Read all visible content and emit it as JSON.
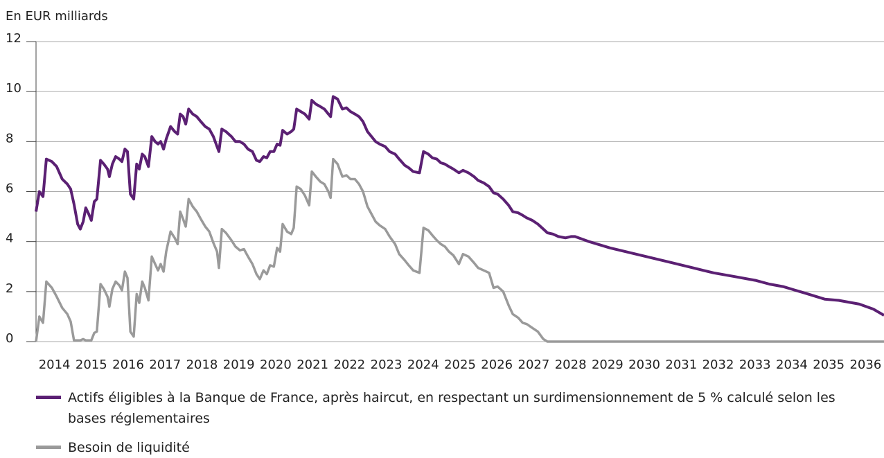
{
  "chart_data": {
    "type": "line",
    "y_label": "En EUR milliards",
    "x": [
      2014.0,
      2014.09,
      2014.19,
      2014.28,
      2014.43,
      2014.56,
      2014.71,
      2014.85,
      2014.94,
      2015.03,
      2015.13,
      2015.2,
      2015.28,
      2015.35,
      2015.43,
      2015.5,
      2015.58,
      2015.65,
      2015.75,
      2015.84,
      2015.94,
      2015.99,
      2016.07,
      2016.16,
      2016.26,
      2016.33,
      2016.41,
      2016.48,
      2016.56,
      2016.65,
      2016.73,
      2016.8,
      2016.88,
      2016.95,
      2017.05,
      2017.14,
      2017.23,
      2017.31,
      2017.38,
      2017.46,
      2017.53,
      2017.65,
      2017.76,
      2017.84,
      2017.91,
      2017.99,
      2018.06,
      2018.14,
      2018.25,
      2018.36,
      2018.47,
      2018.59,
      2018.7,
      2018.81,
      2018.91,
      2018.96,
      2019.04,
      2019.15,
      2019.3,
      2019.41,
      2019.53,
      2019.64,
      2019.75,
      2019.87,
      2019.98,
      2020.07,
      2020.17,
      2020.26,
      2020.35,
      2020.45,
      2020.54,
      2020.62,
      2020.69,
      2020.81,
      2020.92,
      2020.99,
      2021.07,
      2021.18,
      2021.29,
      2021.41,
      2021.48,
      2021.59,
      2021.71,
      2021.82,
      2021.93,
      2021.99,
      2022.06,
      2022.18,
      2022.31,
      2022.42,
      2022.53,
      2022.65,
      2022.76,
      2022.87,
      2022.99,
      2023.1,
      2023.21,
      2023.32,
      2023.47,
      2023.59,
      2023.74,
      2023.85,
      2024.0,
      2024.11,
      2024.23,
      2024.4,
      2024.51,
      2024.64,
      2024.75,
      2024.87,
      2024.98,
      2025.09,
      2025.2,
      2025.32,
      2025.47,
      2025.58,
      2025.73,
      2025.88,
      2025.99,
      2026.14,
      2026.29,
      2026.41,
      2026.52,
      2026.67,
      2026.82,
      2026.93,
      2027.08,
      2027.2,
      2027.31,
      2027.46,
      2027.61,
      2027.76,
      2027.87,
      2028.02,
      2028.17,
      2028.36,
      2028.51,
      2028.62,
      2029.0,
      2029.56,
      2030.13,
      2030.69,
      2031.26,
      2031.82,
      2032.38,
      2032.95,
      2033.51,
      2033.89,
      2034.26,
      2034.83,
      2035.39,
      2035.77,
      2036.33,
      2036.71,
      2037.0
    ],
    "series": [
      {
        "name": "Actifs éligibles à la Banque de France, après haircut, en respectant un surdimensionnement de 5 % calculé selon les bases réglementaires",
        "color": "#5b2073",
        "width": 4,
        "values": [
          5.2,
          6.0,
          5.8,
          7.3,
          7.2,
          7.0,
          6.5,
          6.3,
          6.1,
          5.5,
          4.7,
          4.5,
          4.8,
          5.35,
          5.1,
          4.85,
          5.6,
          5.7,
          7.25,
          7.1,
          6.9,
          6.6,
          7.1,
          7.4,
          7.3,
          7.2,
          7.7,
          7.6,
          5.9,
          5.7,
          7.1,
          6.9,
          7.5,
          7.4,
          7.0,
          8.2,
          8.0,
          7.9,
          8.0,
          7.7,
          8.1,
          8.6,
          8.4,
          8.3,
          9.1,
          9.0,
          8.7,
          9.3,
          9.1,
          9.0,
          8.8,
          8.6,
          8.5,
          8.2,
          7.8,
          7.6,
          8.5,
          8.4,
          8.2,
          8.0,
          8.0,
          7.9,
          7.7,
          7.6,
          7.25,
          7.2,
          7.4,
          7.35,
          7.6,
          7.6,
          7.9,
          7.85,
          8.45,
          8.3,
          8.4,
          8.5,
          9.3,
          9.2,
          9.1,
          8.9,
          9.65,
          9.5,
          9.4,
          9.3,
          9.1,
          9.0,
          9.8,
          9.7,
          9.3,
          9.35,
          9.2,
          9.1,
          9.0,
          8.8,
          8.4,
          8.2,
          8.0,
          7.9,
          7.8,
          7.6,
          7.5,
          7.3,
          7.05,
          6.95,
          6.8,
          6.75,
          7.6,
          7.5,
          7.35,
          7.3,
          7.15,
          7.1,
          7.0,
          6.9,
          6.75,
          6.85,
          6.75,
          6.6,
          6.45,
          6.35,
          6.2,
          5.95,
          5.9,
          5.7,
          5.45,
          5.2,
          5.15,
          5.05,
          4.95,
          4.85,
          4.7,
          4.5,
          4.35,
          4.3,
          4.2,
          4.15,
          4.2,
          4.2,
          4.0,
          3.75,
          3.55,
          3.35,
          3.15,
          2.95,
          2.75,
          2.6,
          2.45,
          2.3,
          2.2,
          1.95,
          1.7,
          1.65,
          1.5,
          1.3,
          1.05
        ]
      },
      {
        "name": "Besoin de liquidité",
        "color": "#9a9a9a",
        "width": 3.5,
        "values": [
          0,
          1.0,
          0.75,
          2.4,
          2.15,
          1.8,
          1.35,
          1.1,
          0.8,
          0.05,
          0.05,
          0.05,
          0.1,
          0.05,
          0.05,
          0.05,
          0.35,
          0.4,
          2.3,
          2.1,
          1.8,
          1.4,
          2.1,
          2.4,
          2.25,
          2.05,
          2.8,
          2.55,
          0.4,
          0.2,
          1.9,
          1.55,
          2.4,
          2.15,
          1.65,
          3.4,
          3.1,
          2.85,
          3.1,
          2.8,
          3.6,
          4.4,
          4.15,
          3.9,
          5.2,
          4.9,
          4.6,
          5.7,
          5.4,
          5.2,
          4.9,
          4.6,
          4.4,
          3.95,
          3.6,
          2.95,
          4.5,
          4.35,
          4.05,
          3.8,
          3.65,
          3.7,
          3.4,
          3.1,
          2.7,
          2.5,
          2.85,
          2.7,
          3.05,
          3.0,
          3.75,
          3.6,
          4.7,
          4.4,
          4.3,
          4.55,
          6.2,
          6.1,
          5.85,
          5.45,
          6.8,
          6.6,
          6.4,
          6.3,
          6.0,
          5.75,
          7.3,
          7.1,
          6.6,
          6.65,
          6.5,
          6.5,
          6.3,
          6.0,
          5.4,
          5.1,
          4.8,
          4.65,
          4.5,
          4.2,
          3.9,
          3.5,
          3.25,
          3.05,
          2.85,
          2.75,
          4.55,
          4.45,
          4.25,
          4.05,
          3.9,
          3.8,
          3.6,
          3.45,
          3.1,
          3.5,
          3.4,
          3.15,
          2.95,
          2.85,
          2.75,
          2.15,
          2.2,
          2.0,
          1.45,
          1.1,
          0.95,
          0.75,
          0.7,
          0.55,
          0.4,
          0.1,
          0,
          0,
          0,
          0,
          0,
          0,
          0,
          0,
          0,
          0,
          0,
          0,
          0,
          0,
          0,
          0,
          0,
          0,
          0,
          0,
          0,
          0,
          0
        ]
      }
    ],
    "xlim": [
      2014,
      2037
    ],
    "xticks": [
      2014,
      2015,
      2016,
      2017,
      2018,
      2019,
      2020,
      2021,
      2022,
      2023,
      2024,
      2025,
      2026,
      2027,
      2028,
      2029,
      2030,
      2031,
      2032,
      2033,
      2034,
      2035,
      2036
    ],
    "ylim": [
      0,
      12
    ],
    "yticks": [
      0,
      2,
      4,
      6,
      8,
      10,
      12
    ],
    "grid": true
  }
}
